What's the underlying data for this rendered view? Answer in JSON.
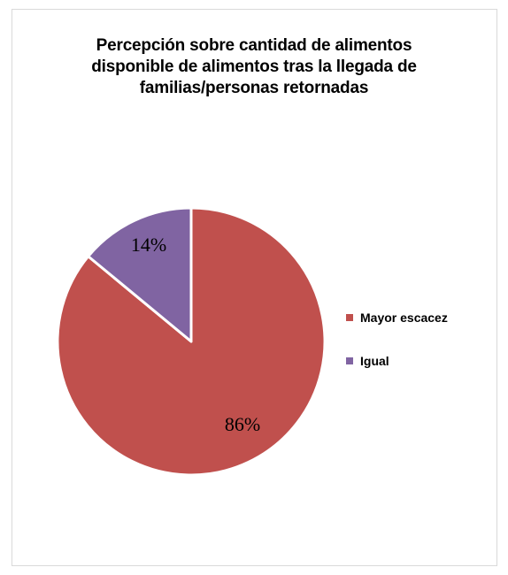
{
  "chart_data": {
    "type": "pie",
    "title": [
      "Percepción sobre cantidad de alimentos",
      "disponible de alimentos tras la llegada de",
      "familias/personas retornadas"
    ],
    "slices": [
      {
        "label": "Mayor escacez",
        "value": 86,
        "display": "86%",
        "color": "#c0504d"
      },
      {
        "label": "Igual",
        "value": 14,
        "display": "14%",
        "color": "#8064a2"
      }
    ],
    "legend_position": "right"
  }
}
